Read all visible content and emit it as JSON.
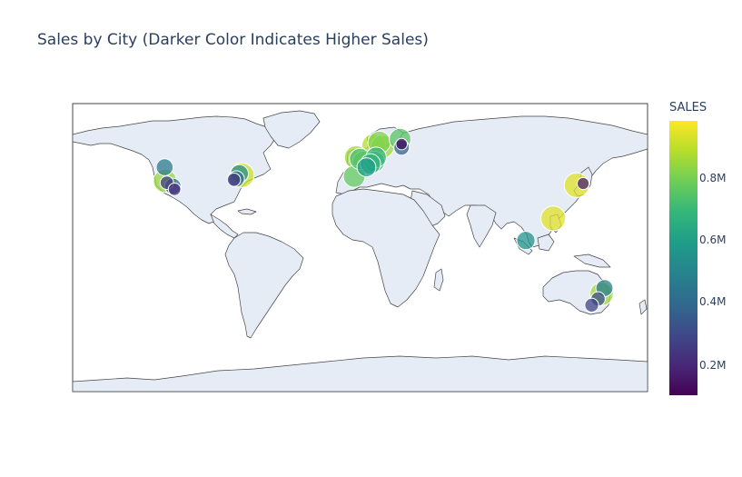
{
  "title": "Sales by City (Darker Color Indicates Higher Sales)",
  "chart_data": {
    "type": "scatter_geo",
    "title": "Sales by City (Darker Color Indicates Higher Sales)",
    "projection": "equirectangular",
    "colorscale": "Viridis",
    "colorbar": {
      "title": "SALES",
      "range": [
        100000,
        1000000
      ],
      "ticks": [
        200000,
        400000,
        600000,
        800000
      ],
      "tick_labels": [
        "0.2M",
        "0.4M",
        "0.6M",
        "0.8M"
      ]
    },
    "land_color": "#e5ecf6",
    "coast_color": "#444444",
    "points": [
      {
        "lon": -122.4,
        "lat": 45.5,
        "sales": 470000
      },
      {
        "lon": -122.2,
        "lat": 37.3,
        "sales": 860000
      },
      {
        "lon": -121.0,
        "lat": 36.2,
        "sales": 260000
      },
      {
        "lon": -117.2,
        "lat": 34.0,
        "sales": 440000
      },
      {
        "lon": -116.2,
        "lat": 32.2,
        "sales": 200000
      },
      {
        "lon": -74.0,
        "lat": 40.7,
        "sales": 930000
      },
      {
        "lon": -75.6,
        "lat": 41.6,
        "sales": 540000
      },
      {
        "lon": -77.5,
        "lat": 38.5,
        "sales": 430000
      },
      {
        "lon": -79.0,
        "lat": 38.0,
        "sales": 250000
      },
      {
        "lon": -2.5,
        "lat": 51.5,
        "sales": 870000
      },
      {
        "lon": 0.0,
        "lat": 50.5,
        "sales": 740000
      },
      {
        "lon": 2.3,
        "lat": 48.5,
        "sales": 830000
      },
      {
        "lon": -3.7,
        "lat": 40.0,
        "sales": 780000
      },
      {
        "lon": 4.0,
        "lat": 45.5,
        "sales": 600000
      },
      {
        "lon": 6.5,
        "lat": 47.5,
        "sales": 690000
      },
      {
        "lon": 9.0,
        "lat": 49.0,
        "sales": 720000
      },
      {
        "lon": 10.0,
        "lat": 51.5,
        "sales": 700000
      },
      {
        "lon": 8.5,
        "lat": 58.5,
        "sales": 900000
      },
      {
        "lon": 12.0,
        "lat": 60.5,
        "sales": 820000
      },
      {
        "lon": 14.0,
        "lat": 58.0,
        "sales": 870000
      },
      {
        "lon": 25.0,
        "lat": 62.5,
        "sales": 760000
      },
      {
        "lon": 26.0,
        "lat": 59.5,
        "sales": 130000
      },
      {
        "lon": 26.0,
        "lat": 57.5,
        "sales": 380000
      },
      {
        "lon": 103.8,
        "lat": 1.3,
        "sales": 560000
      },
      {
        "lon": 120.9,
        "lat": 14.6,
        "sales": 960000
      },
      {
        "lon": 135.5,
        "lat": 34.7,
        "sales": 960000
      },
      {
        "lon": 139.7,
        "lat": 35.7,
        "sales": 170000
      },
      {
        "lon": 153.0,
        "lat": -27.5,
        "sales": 480000
      },
      {
        "lon": 151.2,
        "lat": -31.0,
        "sales": 870000
      },
      {
        "lon": 149.0,
        "lat": -34.0,
        "sales": 310000
      },
      {
        "lon": 145.0,
        "lat": -37.8,
        "sales": 280000
      }
    ]
  }
}
